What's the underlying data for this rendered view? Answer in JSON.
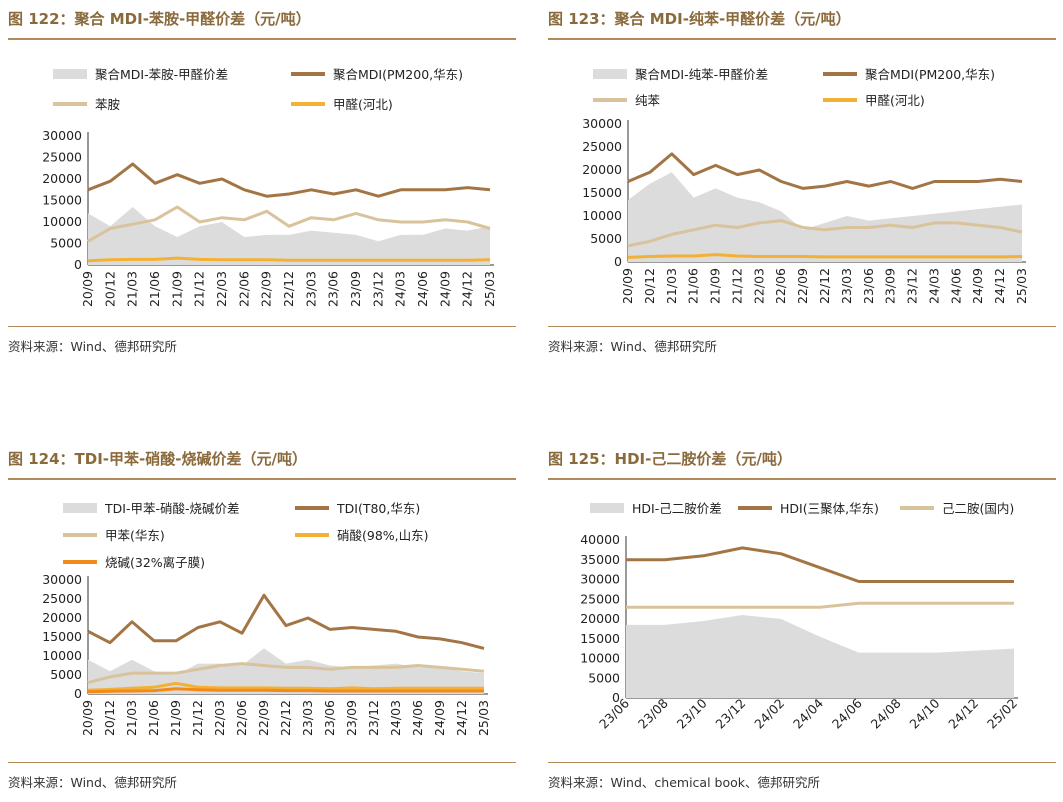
{
  "source_wind": "资料来源：Wind、德邦研究所",
  "source_chem": "资料来源：Wind、chemical book、德邦研究所",
  "colors": {
    "title": "#8a6a3c",
    "area": "#dcdcdc",
    "brown": "#a37545",
    "tan": "#d9c39d",
    "yellow": "#f2b134",
    "orange": "#f28a1a"
  },
  "chart_data": [
    {
      "id": "c122",
      "type": "line",
      "title": "图 122：聚合 MDI-苯胺-甲醛价差（元/吨）",
      "ylim": [
        0,
        30000
      ],
      "yticks": [
        "0",
        "5000",
        "10000",
        "15000",
        "20000",
        "25000",
        "30000"
      ],
      "categories": [
        "20/09",
        "20/12",
        "21/03",
        "21/06",
        "21/09",
        "21/12",
        "22/03",
        "22/06",
        "22/09",
        "22/12",
        "23/03",
        "23/06",
        "23/09",
        "23/12",
        "24/03",
        "24/06",
        "24/09",
        "24/12",
        "25/03"
      ],
      "series": [
        {
          "name": "聚合MDI-苯胺-甲醛价差",
          "kind": "area",
          "color": "#dcdcdc",
          "values": [
            12000,
            9000,
            13500,
            9000,
            6500,
            9000,
            10000,
            6500,
            7000,
            7000,
            8000,
            7500,
            7000,
            5500,
            7000,
            7000,
            8500,
            8000,
            9000
          ]
        },
        {
          "name": "聚合MDI(PM200,华东)",
          "kind": "line",
          "color": "#a37545",
          "values": [
            17500,
            19500,
            23500,
            19000,
            21000,
            19000,
            20000,
            17500,
            16000,
            16500,
            17500,
            16500,
            17500,
            16000,
            17500,
            17500,
            17500,
            18000,
            17500
          ]
        },
        {
          "name": "苯胺",
          "kind": "line",
          "color": "#d9c39d",
          "values": [
            5500,
            8500,
            9500,
            10500,
            13500,
            10000,
            11000,
            10500,
            12500,
            9000,
            11000,
            10500,
            12000,
            10500,
            10000,
            10000,
            10500,
            10000,
            8500
          ]
        },
        {
          "name": "甲醛(河北)",
          "kind": "line",
          "color": "#f2b134",
          "values": [
            1000,
            1200,
            1300,
            1300,
            1600,
            1300,
            1200,
            1200,
            1200,
            1100,
            1100,
            1100,
            1100,
            1100,
            1100,
            1100,
            1100,
            1100,
            1200
          ]
        }
      ]
    },
    {
      "id": "c123",
      "type": "line",
      "title": "图 123：聚合 MDI-纯苯-甲醛价差（元/吨）",
      "ylim": [
        0,
        30000
      ],
      "yticks": [
        "0",
        "5000",
        "10000",
        "15000",
        "20000",
        "25000",
        "30000"
      ],
      "categories": [
        "20/09",
        "20/12",
        "21/03",
        "21/06",
        "21/09",
        "21/12",
        "22/03",
        "22/06",
        "22/09",
        "22/12",
        "23/03",
        "23/06",
        "23/09",
        "23/12",
        "24/03",
        "24/06",
        "24/09",
        "24/12",
        "25/03"
      ],
      "series": [
        {
          "name": "聚合MDI-纯苯-甲醛价差",
          "kind": "area",
          "color": "#dcdcdc",
          "values": [
            13500,
            17000,
            19500,
            14000,
            16000,
            14000,
            13000,
            11000,
            7000,
            8500,
            10000,
            9000,
            9500,
            10000,
            10500,
            11000,
            11500,
            12000,
            12500
          ]
        },
        {
          "name": "聚合MDI(PM200,华东)",
          "kind": "line",
          "color": "#a37545",
          "values": [
            17500,
            19500,
            23500,
            19000,
            21000,
            19000,
            20000,
            17500,
            16000,
            16500,
            17500,
            16500,
            17500,
            16000,
            17500,
            17500,
            17500,
            18000,
            17500
          ]
        },
        {
          "name": "纯苯",
          "kind": "line",
          "color": "#d9c39d",
          "values": [
            3500,
            4500,
            6000,
            7000,
            8000,
            7500,
            8500,
            9000,
            7500,
            7000,
            7500,
            7500,
            8000,
            7500,
            8500,
            8500,
            8000,
            7500,
            6500
          ]
        },
        {
          "name": "甲醛(河北)",
          "kind": "line",
          "color": "#f2b134",
          "values": [
            1000,
            1200,
            1300,
            1300,
            1600,
            1300,
            1200,
            1200,
            1200,
            1100,
            1100,
            1100,
            1100,
            1100,
            1100,
            1100,
            1100,
            1100,
            1200
          ]
        }
      ]
    },
    {
      "id": "c124",
      "type": "line",
      "title": "图 124：TDI-甲苯-硝酸-烧碱价差（元/吨）",
      "ylim": [
        0,
        30000
      ],
      "yticks": [
        "0",
        "5000",
        "10000",
        "15000",
        "20000",
        "25000",
        "30000"
      ],
      "categories": [
        "20/09",
        "20/12",
        "21/03",
        "21/06",
        "21/09",
        "21/12",
        "22/03",
        "22/06",
        "22/09",
        "22/12",
        "23/03",
        "23/06",
        "23/09",
        "23/12",
        "24/03",
        "24/06",
        "24/09",
        "24/12",
        "25/03"
      ],
      "series": [
        {
          "name": "TDI-甲苯-硝酸-烧碱价差",
          "kind": "area",
          "color": "#dcdcdc",
          "values": [
            9000,
            6000,
            9000,
            6000,
            5000,
            8000,
            8000,
            7500,
            12000,
            8000,
            9000,
            7500,
            7000,
            7500,
            8000,
            7000,
            7000,
            6000,
            5500
          ]
        },
        {
          "name": "TDI(T80,华东)",
          "kind": "line",
          "color": "#a37545",
          "values": [
            16500,
            13500,
            19000,
            14000,
            14000,
            17500,
            19000,
            16000,
            26000,
            18000,
            20000,
            17000,
            17500,
            17000,
            16500,
            15000,
            14500,
            13500,
            12000
          ]
        },
        {
          "name": "甲苯(华东)",
          "kind": "line",
          "color": "#d9c39d",
          "values": [
            3000,
            4500,
            5500,
            5500,
            5500,
            6500,
            7500,
            8000,
            7500,
            7000,
            7000,
            6500,
            7000,
            7000,
            7000,
            7500,
            7000,
            6500,
            6000
          ]
        },
        {
          "name": "硝酸(98%,山东)",
          "kind": "line",
          "color": "#f2b134",
          "values": [
            1000,
            1200,
            1500,
            1800,
            2800,
            1800,
            1600,
            1600,
            1600,
            1500,
            1500,
            1400,
            1600,
            1400,
            1500,
            1500,
            1500,
            1500,
            1500
          ]
        },
        {
          "name": "烧碱(32%离子膜)",
          "kind": "line",
          "color": "#f28a1a",
          "values": [
            600,
            700,
            800,
            900,
            1400,
            1100,
            1000,
            1000,
            1000,
            900,
            900,
            800,
            800,
            800,
            800,
            800,
            800,
            800,
            800
          ]
        }
      ]
    },
    {
      "id": "c125",
      "type": "line",
      "title": "图 125：HDI-己二胺价差（元/吨）",
      "ylim": [
        0,
        40000
      ],
      "yticks": [
        "0",
        "5000",
        "10000",
        "15000",
        "20000",
        "25000",
        "30000",
        "35000",
        "40000"
      ],
      "categories": [
        "23/06",
        "23/08",
        "23/10",
        "23/12",
        "24/02",
        "24/04",
        "24/06",
        "24/08",
        "24/10",
        "24/12",
        "25/02"
      ],
      "series": [
        {
          "name": "HDI-己二胺价差",
          "kind": "area",
          "color": "#dcdcdc",
          "values": [
            18500,
            18500,
            19500,
            21000,
            20000,
            15500,
            11500,
            11500,
            11500,
            12000,
            12500
          ]
        },
        {
          "name": "HDI(三聚体,华东)",
          "kind": "line",
          "color": "#a37545",
          "values": [
            35000,
            35000,
            36000,
            38000,
            36500,
            33000,
            29500,
            29500,
            29500,
            29500,
            29500
          ]
        },
        {
          "name": "己二胺(国内)",
          "kind": "line",
          "color": "#d9c39d",
          "values": [
            23000,
            23000,
            23000,
            23000,
            23000,
            23000,
            24000,
            24000,
            24000,
            24000,
            24000
          ]
        }
      ]
    }
  ]
}
